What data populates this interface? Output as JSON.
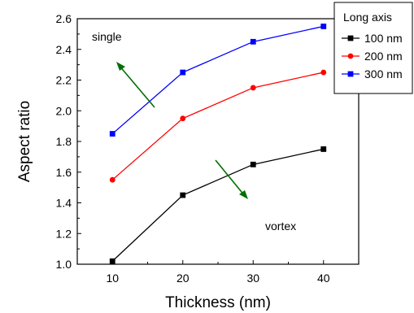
{
  "chart_data": {
    "type": "line",
    "xlabel": "Thickness (nm)",
    "ylabel": "Aspect ratio",
    "x": [
      10,
      20,
      30,
      40
    ],
    "xlim": [
      5,
      45
    ],
    "ylim": [
      1.0,
      2.6
    ],
    "xticks": [
      "10",
      "20",
      "30",
      "40"
    ],
    "yticks": [
      "1.0",
      "1.2",
      "1.4",
      "1.6",
      "1.8",
      "2.0",
      "2.2",
      "2.4",
      "2.6"
    ],
    "grid": false,
    "legend": {
      "title": "Long axis",
      "placement": "top-right"
    },
    "series": [
      {
        "name": "100 nm",
        "values": [
          1.02,
          1.45,
          1.65,
          1.75
        ],
        "color": "#000000",
        "marker": "square"
      },
      {
        "name": "200 nm",
        "values": [
          1.55,
          1.95,
          2.15,
          2.25
        ],
        "color": "#ff0000",
        "marker": "circle"
      },
      {
        "name": "300 nm",
        "values": [
          1.85,
          2.25,
          2.45,
          2.55
        ],
        "color": "#0000ff",
        "marker": "square"
      }
    ],
    "annotations": [
      {
        "text": "single"
      },
      {
        "text": "vortex"
      }
    ],
    "arrow_color": "#007000"
  }
}
